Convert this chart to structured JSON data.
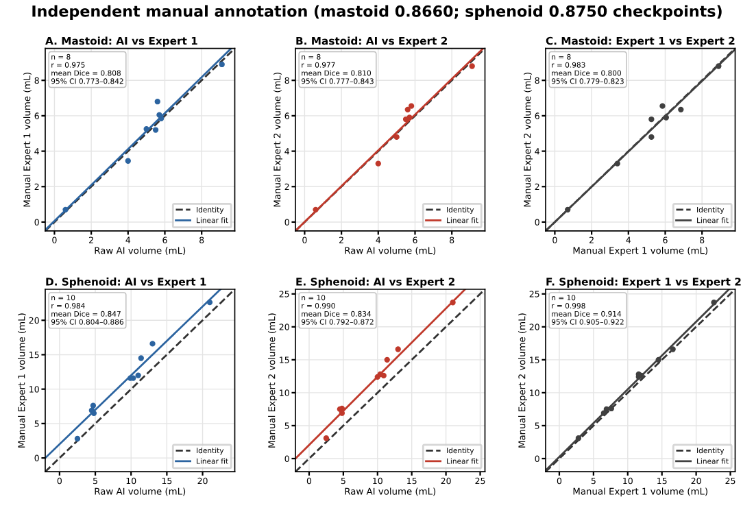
{
  "chart_data": [
    {
      "type": "scatter",
      "subtitle": "Independent manual annotation (mastoid 0.8660; sphenoid 0.8750 checkpoints)",
      "title": "A. Mastoid: AI vs Expert 1",
      "xlabel": "Raw AI volume (mL)",
      "ylabel": "Manual Expert 1 volume (mL)",
      "xlim": [
        -0.5,
        9.8
      ],
      "ylim": [
        -0.5,
        9.8
      ],
      "xticks": [
        0,
        2,
        4,
        6,
        8
      ],
      "yticks": [
        0,
        2,
        4,
        6,
        8
      ],
      "grid": true,
      "legend": "bottom right",
      "annotations": [
        "n = 8\nr = 0.975\nmean Dice = 0.808\n95% CI 0.773–0.842"
      ],
      "series": [
        {
          "color": "#2c64a0",
          "x": [
            0.6,
            4.0,
            5.0,
            5.5,
            5.6,
            5.7,
            5.8,
            9.1
          ],
          "values": [
            0.7,
            3.45,
            5.25,
            5.2,
            6.8,
            6.05,
            5.85,
            8.9
          ]
        },
        {
          "type": "line",
          "name": "Identity",
          "color": "#333333",
          "line_style": "dashed",
          "x": [
            -0.5,
            9.8
          ],
          "values": [
            -0.5,
            9.8
          ]
        },
        {
          "type": "line",
          "name": "Linear fit",
          "color": "#2c64a0",
          "line_style": "solid",
          "x": [
            -0.5,
            9.6
          ],
          "values": [
            -0.45,
            9.8
          ]
        }
      ]
    },
    {
      "type": "scatter",
      "title": "B. Mastoid: AI vs Expert 2",
      "xlabel": "Raw AI volume (mL)",
      "ylabel": "Manual Expert 2 volume (mL)",
      "xlim": [
        -0.5,
        9.8
      ],
      "ylim": [
        -0.5,
        9.8
      ],
      "xticks": [
        0,
        2,
        4,
        6,
        8
      ],
      "yticks": [
        0,
        2,
        4,
        6,
        8
      ],
      "grid": true,
      "legend": "bottom right",
      "annotations": [
        "n = 8\nr = 0.977\nmean Dice = 0.810\n95% CI 0.777–0.843"
      ],
      "series": [
        {
          "color": "#c0392b",
          "x": [
            0.6,
            4.0,
            5.0,
            5.5,
            5.6,
            5.7,
            5.8,
            9.1
          ],
          "values": [
            0.7,
            3.3,
            4.8,
            5.8,
            6.35,
            5.9,
            6.55,
            8.8
          ]
        },
        {
          "type": "line",
          "name": "Identity",
          "color": "#333333",
          "line_style": "dashed",
          "x": [
            -0.5,
            9.8
          ],
          "values": [
            -0.5,
            9.8
          ]
        },
        {
          "type": "line",
          "name": "Linear fit",
          "color": "#c0392b",
          "line_style": "solid",
          "x": [
            -0.5,
            9.7
          ],
          "values": [
            -0.5,
            9.8
          ]
        }
      ]
    },
    {
      "type": "scatter",
      "title": "C. Mastoid: Expert 1 vs Expert 2",
      "xlabel": "Manual Expert 1 volume (mL)",
      "ylabel": "Manual Expert 2 volume (mL)",
      "xlim": [
        -0.5,
        9.8
      ],
      "ylim": [
        -0.5,
        9.8
      ],
      "xticks": [
        0,
        2,
        4,
        6,
        8
      ],
      "yticks": [
        0,
        2,
        4,
        6,
        8
      ],
      "grid": true,
      "legend": "bottom right",
      "annotations": [
        "n = 8\nr = 0.983\nmean Dice = 0.800\n95% CI 0.779–0.823"
      ],
      "series": [
        {
          "color": "#404040",
          "x": [
            0.7,
            3.4,
            5.25,
            5.25,
            5.85,
            6.05,
            6.85,
            8.9
          ],
          "values": [
            0.7,
            3.3,
            4.8,
            5.8,
            6.55,
            5.9,
            6.35,
            8.8
          ]
        },
        {
          "type": "line",
          "name": "Identity",
          "color": "#333333",
          "line_style": "dashed",
          "x": [
            -0.5,
            9.8
          ],
          "values": [
            -0.5,
            9.8
          ]
        },
        {
          "type": "line",
          "name": "Linear fit",
          "color": "#404040",
          "line_style": "solid",
          "x": [
            -0.5,
            9.8
          ],
          "values": [
            -0.5,
            9.75
          ]
        }
      ]
    },
    {
      "type": "scatter",
      "title": "D. Sphenoid: AI vs Expert 1",
      "xlabel": "Raw AI volume (mL)",
      "ylabel": "Manual Expert 1 volume (mL)",
      "xlim": [
        -2,
        24.5
      ],
      "ylim": [
        -2,
        24.5
      ],
      "xticks": [
        0,
        5,
        10,
        15,
        20
      ],
      "yticks": [
        0,
        5,
        10,
        15,
        20
      ],
      "grid": true,
      "legend": "bottom right",
      "annotations": [
        "n = 10\nr = 0.984\nmean Dice = 0.847\n95% CI 0.804–0.886"
      ],
      "series": [
        {
          "color": "#2c64a0",
          "x": [
            2.5,
            4.5,
            4.7,
            4.8,
            9.9,
            10.3,
            11.0,
            11.4,
            13.0,
            21.0
          ],
          "values": [
            2.8,
            6.9,
            7.6,
            6.5,
            11.6,
            11.6,
            12.0,
            14.5,
            16.6,
            22.6
          ]
        },
        {
          "type": "line",
          "name": "Identity",
          "color": "#333333",
          "line_style": "dashed",
          "x": [
            -2,
            24.5
          ],
          "values": [
            -2,
            24.5
          ]
        },
        {
          "type": "line",
          "name": "Linear fit",
          "color": "#2c64a0",
          "line_style": "solid",
          "x": [
            -2,
            22.5
          ],
          "values": [
            0,
            24.5
          ]
        }
      ]
    },
    {
      "type": "scatter",
      "title": "E. Sphenoid: AI vs Expert 2",
      "xlabel": "Raw AI volume (mL)",
      "ylabel": "Manual Expert 2 volume (mL)",
      "xlim": [
        -2,
        25.7
      ],
      "ylim": [
        -2,
        25.7
      ],
      "xticks": [
        0,
        5,
        10,
        15,
        20,
        25
      ],
      "yticks": [
        0,
        5,
        10,
        15,
        20,
        25
      ],
      "grid": true,
      "legend": "bottom right",
      "annotations": [
        "n = 10\nr = 0.990\nmean Dice = 0.834\n95% CI 0.792–0.872"
      ],
      "series": [
        {
          "color": "#c0392b",
          "x": [
            2.5,
            4.5,
            4.8,
            4.8,
            10.0,
            10.4,
            10.9,
            11.4,
            13.0,
            21.0
          ],
          "values": [
            3.1,
            7.5,
            7.6,
            6.9,
            12.4,
            12.8,
            12.6,
            15.0,
            16.6,
            23.7
          ]
        },
        {
          "type": "line",
          "name": "Identity",
          "color": "#333333",
          "line_style": "dashed",
          "x": [
            -2,
            25.7
          ],
          "values": [
            -2,
            25.7
          ]
        },
        {
          "type": "line",
          "name": "Linear fit",
          "color": "#c0392b",
          "line_style": "solid",
          "x": [
            -2,
            22.8
          ],
          "values": [
            0,
            25.7
          ]
        }
      ]
    },
    {
      "type": "scatter",
      "title": "F. Sphenoid: Expert 1 vs Expert 2",
      "xlabel": "Manual Expert 1 volume (mL)",
      "ylabel": "Manual Expert 2 volume (mL)",
      "xlim": [
        -2,
        25.7
      ],
      "ylim": [
        -2,
        25.7
      ],
      "xticks": [
        0,
        5,
        10,
        15,
        20,
        25
      ],
      "yticks": [
        0,
        5,
        10,
        15,
        20,
        25
      ],
      "grid": true,
      "legend": "bottom right",
      "annotations": [
        "n = 10\nr = 0.998\nmean Dice = 0.914\n95% CI 0.905–0.922"
      ],
      "series": [
        {
          "color": "#404040",
          "x": [
            2.8,
            6.5,
            6.9,
            7.6,
            11.6,
            11.6,
            12.0,
            14.5,
            16.6,
            22.6
          ],
          "values": [
            3.1,
            6.9,
            7.5,
            7.6,
            12.8,
            12.4,
            12.6,
            15.0,
            16.6,
            23.7
          ]
        },
        {
          "type": "line",
          "name": "Identity",
          "color": "#333333",
          "line_style": "dashed",
          "x": [
            -2,
            25.7
          ],
          "values": [
            -2,
            25.7
          ]
        },
        {
          "type": "line",
          "name": "Linear fit",
          "color": "#404040",
          "line_style": "solid",
          "x": [
            -2,
            24.8
          ],
          "values": [
            -1.8,
            25.7
          ]
        }
      ]
    }
  ]
}
